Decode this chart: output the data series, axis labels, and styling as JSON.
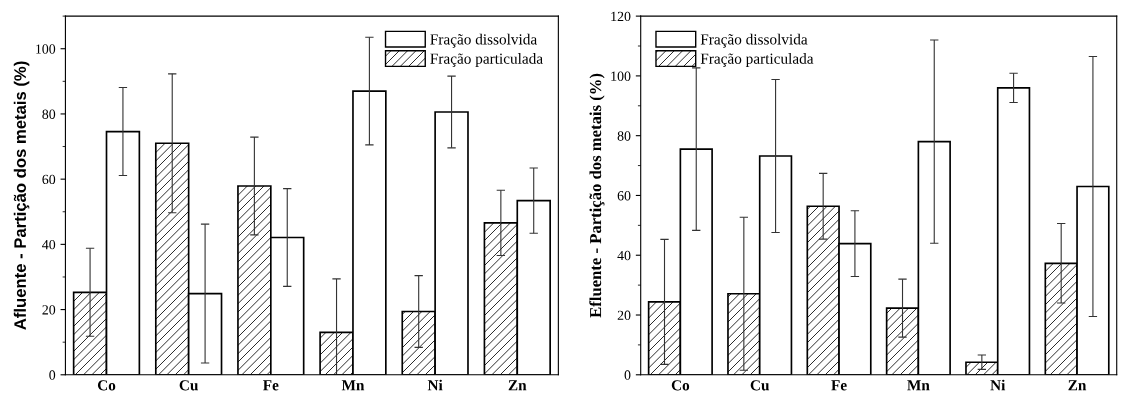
{
  "chart_data": [
    {
      "type": "bar",
      "ylabel": "Afluente - Partição dos metais (%)",
      "categories": [
        "Co",
        "Cu",
        "Fe",
        "Mn",
        "Ni",
        "Zn"
      ],
      "ylim": [
        0,
        110
      ],
      "yticks": [
        0,
        20,
        40,
        60,
        80,
        100
      ],
      "legend": "top right",
      "grid": false,
      "series": [
        {
          "name": "Fração particulada",
          "color": "#000000",
          "values": [
            25.3,
            71,
            57.9,
            13,
            19.4,
            46.6
          ],
          "errors": [
            13.5,
            21.3,
            15,
            16.4,
            11,
            10
          ]
        },
        {
          "name": "Fração dissolvida",
          "color": "#ffffff",
          "values": [
            74.6,
            24.9,
            42.1,
            87,
            80.6,
            53.4
          ],
          "errors": [
            13.5,
            21.3,
            15,
            16.5,
            11,
            10
          ]
        }
      ]
    },
    {
      "type": "bar",
      "ylabel": "Efluente - Partição dos metais (%)",
      "categories": [
        "Co",
        "Cu",
        "Fe",
        "Mn",
        "Ni",
        "Zn"
      ],
      "ylim": [
        0,
        120
      ],
      "yticks": [
        0,
        20,
        40,
        60,
        80,
        100,
        120
      ],
      "legend": "top left",
      "grid": false,
      "series": [
        {
          "name": "Fração particulada",
          "color": "#000000",
          "values": [
            24.4,
            27.1,
            56.4,
            22.3,
            4.2,
            37.3
          ],
          "errors": [
            20.9,
            25.6,
            11,
            9.7,
            2.4,
            13.3
          ]
        },
        {
          "name": "Fração dissolvida",
          "color": "#ffffff",
          "values": [
            75.5,
            73.2,
            43.9,
            78,
            96,
            63
          ],
          "errors": [
            27.2,
            25.6,
            11,
            34,
            4.9,
            43.5
          ]
        }
      ]
    }
  ]
}
